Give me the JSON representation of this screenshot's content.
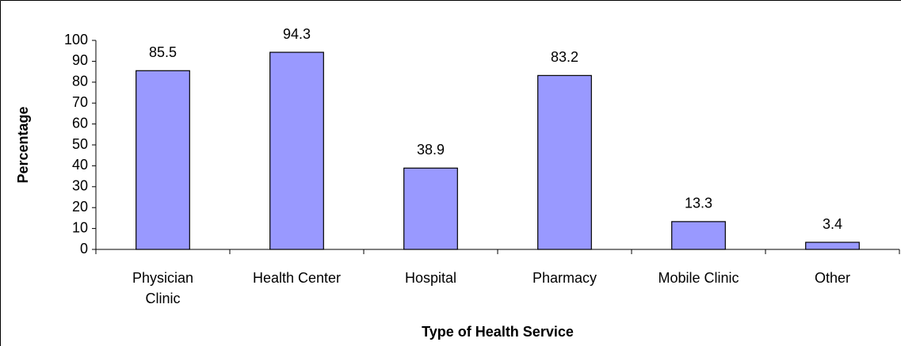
{
  "chart_data": {
    "type": "bar",
    "categories": [
      "Physician Clinic",
      "Health Center",
      "Hospital",
      "Pharmacy",
      "Mobile Clinic",
      "Other"
    ],
    "values": [
      85.5,
      94.3,
      38.9,
      83.2,
      13.3,
      3.4
    ],
    "color": "#9999ff",
    "xlabel": "Type of Health Service",
    "ylabel": "Percentage",
    "ylim": [
      0,
      100
    ],
    "yticks": [
      0,
      10,
      20,
      30,
      40,
      50,
      60,
      70,
      80,
      90,
      100
    ],
    "grid": false
  }
}
